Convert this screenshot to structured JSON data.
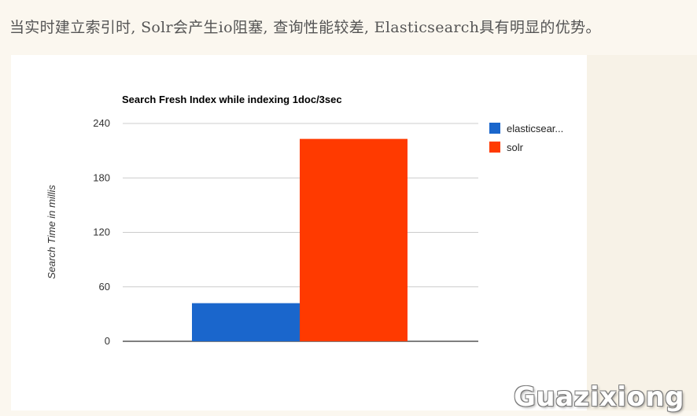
{
  "heading": "当实时建立索引时, Solr会产生io阻塞, 查询性能较差, Elasticsearch具有明显的优势。",
  "watermark": "Guazixiong",
  "chart_data": {
    "type": "bar",
    "title": "Search Fresh Index while indexing 1doc/3sec",
    "xlabel": "",
    "ylabel": "Search Time in millis",
    "ylim": [
      0,
      240
    ],
    "yticks": [
      0,
      60,
      120,
      180,
      240
    ],
    "grid": true,
    "legend_position": "right",
    "categories": [
      ""
    ],
    "series": [
      {
        "name": "elasticsear...",
        "color": "#1a66cc",
        "values": [
          42
        ]
      },
      {
        "name": "solr",
        "color": "#ff3a00",
        "values": [
          223
        ]
      }
    ]
  }
}
